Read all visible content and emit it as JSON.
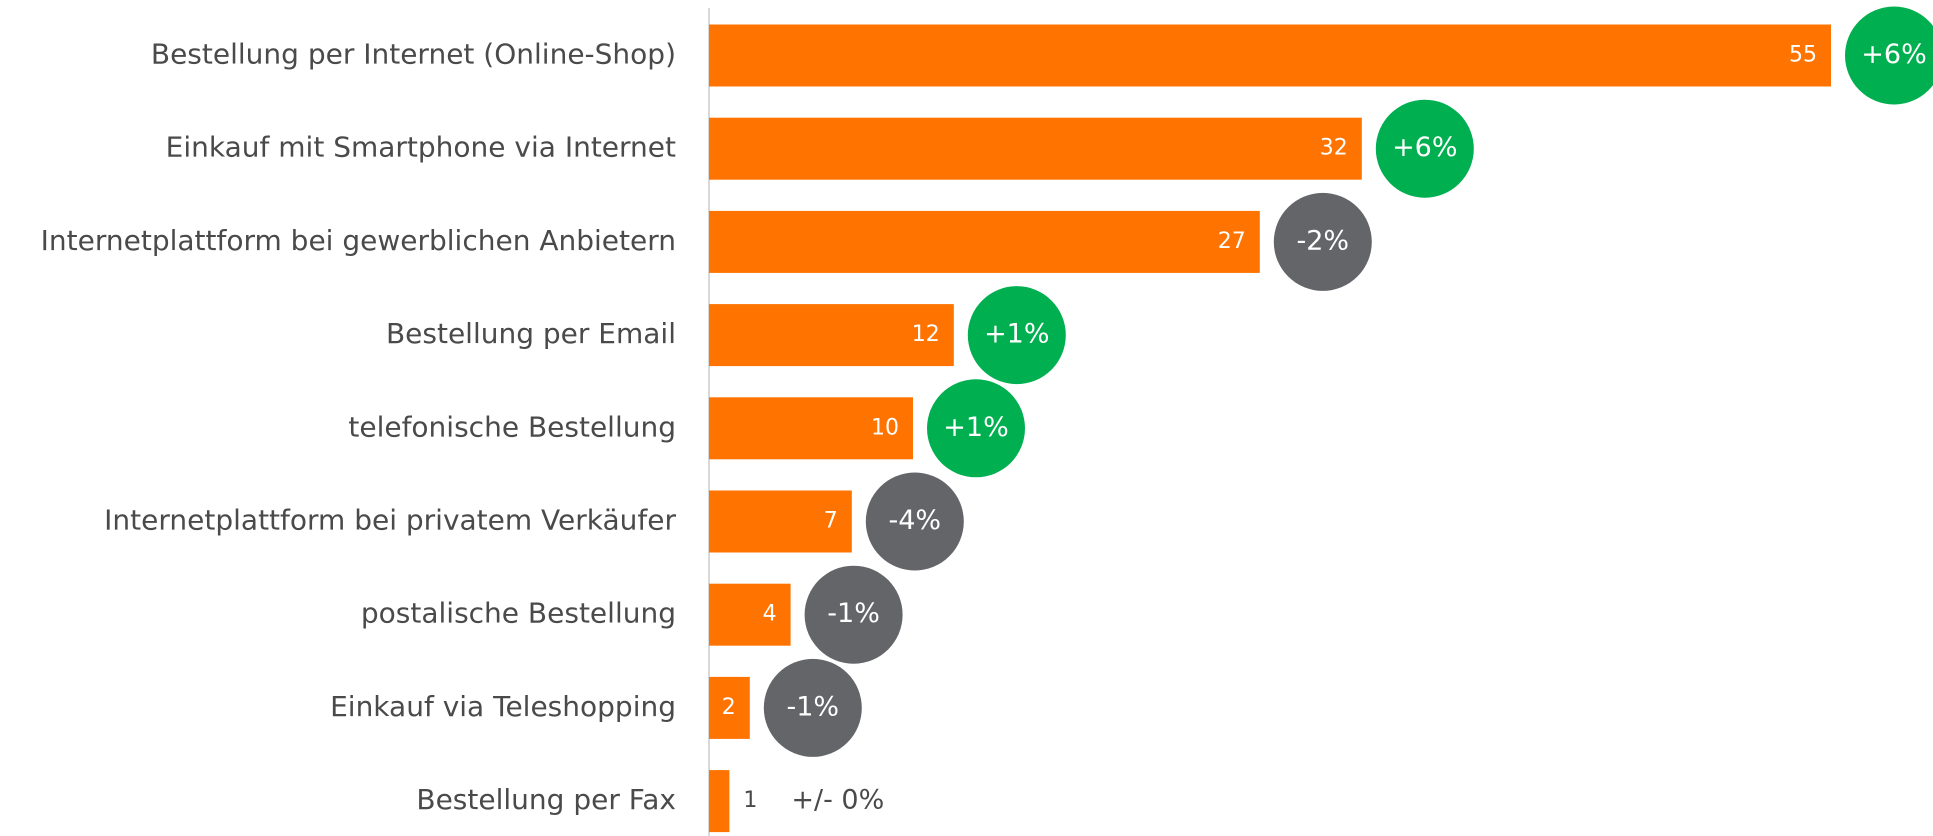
{
  "chart_data": {
    "type": "bar",
    "orientation": "horizontal",
    "categories": [
      "Bestellung per Internet (Online-Shop)",
      "Einkauf mit Smartphone via Internet",
      "Internetplattform bei gewerblichen Anbietern",
      "Bestellung per Email",
      "telefonische Bestellung",
      "Internetplattform bei privatem Verkäufer",
      "postalische Bestellung",
      "Einkauf via Teleshopping",
      "Bestellung per Fax"
    ],
    "values": [
      55,
      32,
      27,
      12,
      10,
      7,
      4,
      2,
      1
    ],
    "color": "#ff7300",
    "xlim": [
      0,
      60
    ],
    "changes": [
      6,
      6,
      -2,
      1,
      1,
      -4,
      -1,
      -1,
      0
    ],
    "change_labels": [
      "+6%",
      "+6%",
      "-2%",
      "+1%",
      "+1%",
      "-4%",
      "-1%",
      "-1%",
      "+/- 0%"
    ],
    "positive_color": "#00b050",
    "negative_color": "#636569"
  }
}
